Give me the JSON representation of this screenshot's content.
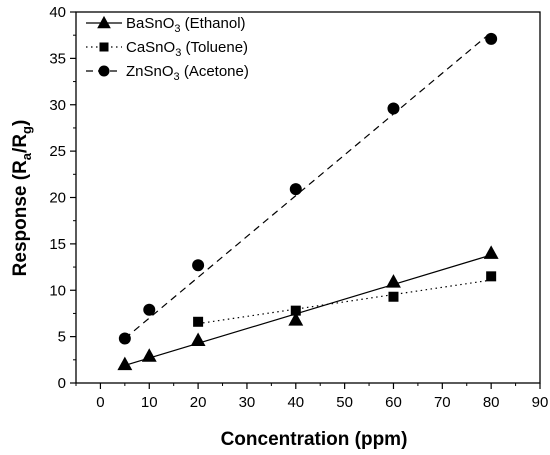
{
  "chart_data": {
    "type": "scatter",
    "xlabel": "Concentration (ppm)",
    "ylabel": {
      "prefix": "Response (R",
      "sub1": "a",
      "mid": "/R",
      "sub2": "g",
      "suffix": ")"
    },
    "xlim": [
      -5,
      90
    ],
    "ylim": [
      0,
      40
    ],
    "x_ticks": [
      0,
      10,
      20,
      30,
      40,
      50,
      60,
      70,
      80,
      90
    ],
    "y_ticks": [
      0,
      5,
      10,
      15,
      20,
      25,
      30,
      35,
      40
    ],
    "grid": false,
    "legend_position": "top-left",
    "series": [
      {
        "name": "BaSnO3 (Ethanol)",
        "legend": {
          "pre": "BaSnO",
          "sub": "3",
          "post": " (Ethanol)"
        },
        "marker": "triangle",
        "line_style": "solid",
        "x": [
          5,
          10,
          20,
          40,
          60,
          80
        ],
        "y": [
          2.0,
          2.9,
          4.6,
          6.8,
          10.9,
          14.0
        ],
        "fit_line": [
          [
            5,
            1.9
          ],
          [
            80,
            13.8
          ]
        ]
      },
      {
        "name": "CaSnO3 (Toluene)",
        "legend": {
          "pre": "CaSnO",
          "sub": "3",
          "post": " (Toluene)"
        },
        "marker": "square",
        "line_style": "dotted",
        "x": [
          20,
          40,
          60,
          80
        ],
        "y": [
          6.6,
          7.8,
          9.3,
          11.5
        ],
        "fit_line": [
          [
            20,
            6.4
          ],
          [
            80,
            11.1
          ]
        ]
      },
      {
        "name": "ZnSnO3 (Acetone)",
        "legend": {
          "pre": "ZnSnO",
          "sub": "3",
          "post": " (Acetone)"
        },
        "marker": "circle",
        "line_style": "dashed",
        "x": [
          5,
          10,
          20,
          40,
          60,
          80
        ],
        "y": [
          4.8,
          7.9,
          12.7,
          20.9,
          29.6,
          37.1
        ],
        "fit_line": [
          [
            5,
            4.8
          ],
          [
            80,
            37.8
          ]
        ]
      }
    ]
  }
}
